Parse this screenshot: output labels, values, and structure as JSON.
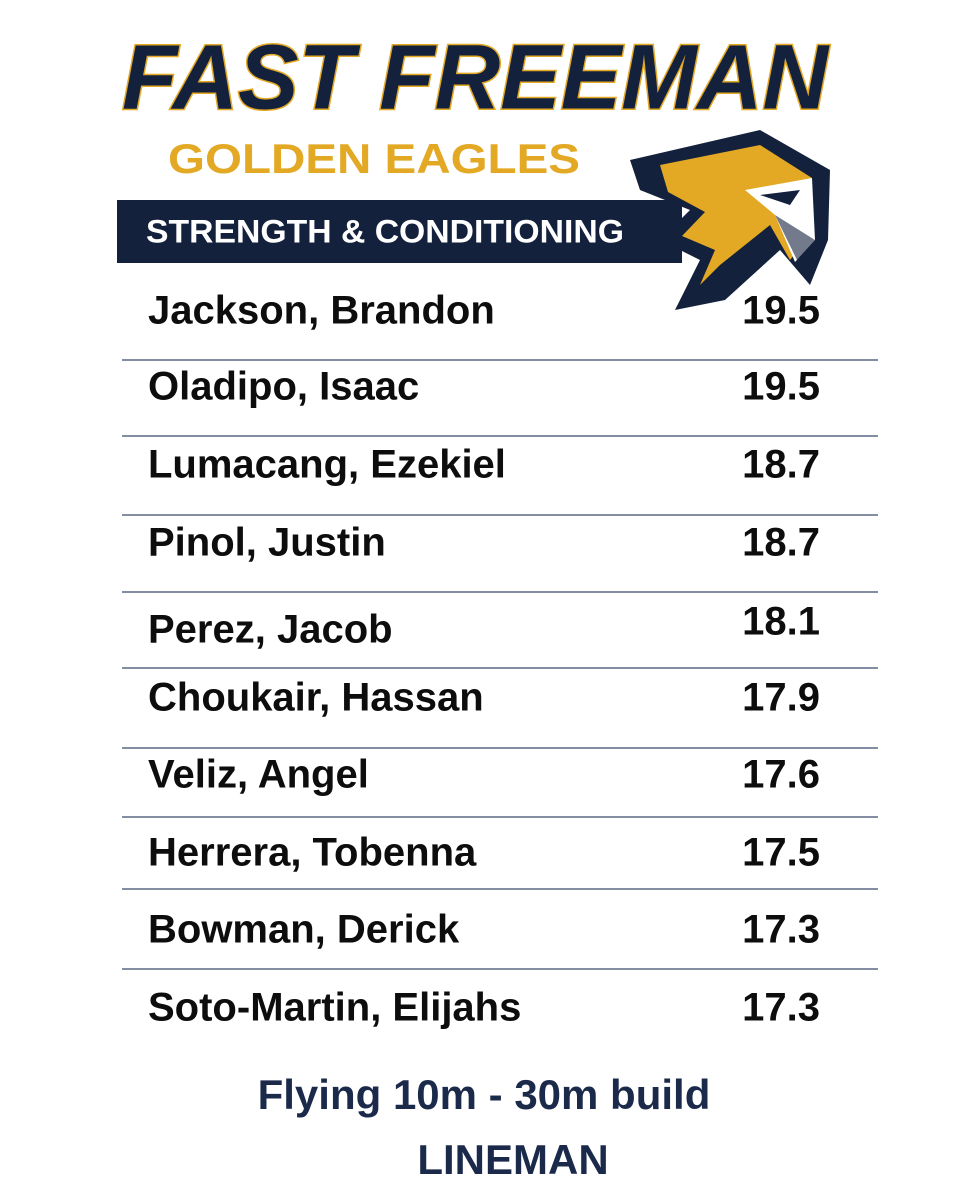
{
  "header": {
    "title": "FAST FREEMAN",
    "subtitle": "GOLDEN EAGLES",
    "banner": "STRENGTH & CONDITIONING"
  },
  "table": {
    "rows": [
      [
        "Jackson, Brandon",
        19.5
      ],
      [
        "Oladipo, Isaac",
        19.5
      ],
      [
        "Lumacang, Ezekiel",
        18.7
      ],
      [
        "Pinol, Justin",
        18.7
      ],
      [
        "Perez, Jacob",
        18.1
      ],
      [
        "Choukair, Hassan",
        17.9
      ],
      [
        "Veliz, Angel",
        17.6
      ],
      [
        "Herrera, Tobenna",
        17.5
      ],
      [
        "Bowman, Derick",
        17.3
      ],
      [
        "Soto-Martin, Elijahs",
        17.3
      ]
    ]
  },
  "footer": {
    "line1": "Flying 10m - 30m build",
    "line2": "LINEMAN"
  }
}
